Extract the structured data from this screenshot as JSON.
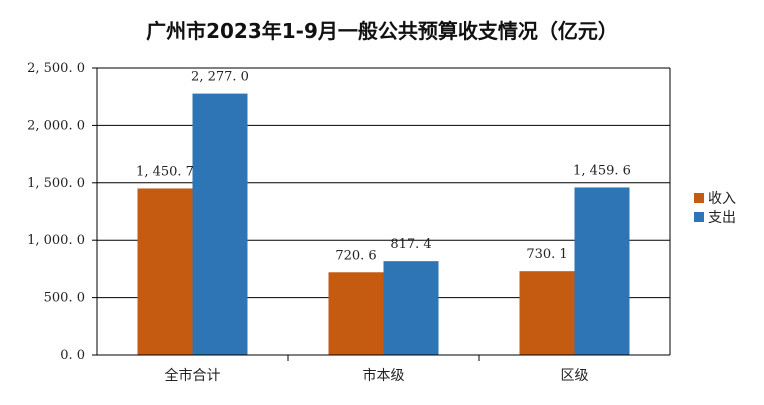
{
  "chart_data": {
    "type": "bar",
    "title": "广州市2023年1-9月一般公共预算收支情况（亿元）",
    "categories": [
      "全市合计",
      "市本级",
      "区级"
    ],
    "series": [
      {
        "name": "收入",
        "color": "#C55A11",
        "values": [
          1450.7,
          720.6,
          730.1
        ],
        "labels": [
          "1, 450. 7",
          "720. 6",
          "730. 1"
        ]
      },
      {
        "name": "支出",
        "color": "#2E75B6",
        "values": [
          2277.0,
          817.4,
          1459.6
        ],
        "labels": [
          "2, 277. 0",
          "817. 4",
          "1, 459. 6"
        ]
      }
    ],
    "ylim": [
      0,
      2500
    ],
    "yticks": [
      0,
      500,
      1000,
      1500,
      2000,
      2500
    ],
    "ytick_labels": [
      "0. 0",
      "500. 0",
      "1, 000. 0",
      "1, 500. 0",
      "2, 000. 0",
      "2, 500. 0"
    ],
    "grid": true,
    "legend_position": "right"
  }
}
